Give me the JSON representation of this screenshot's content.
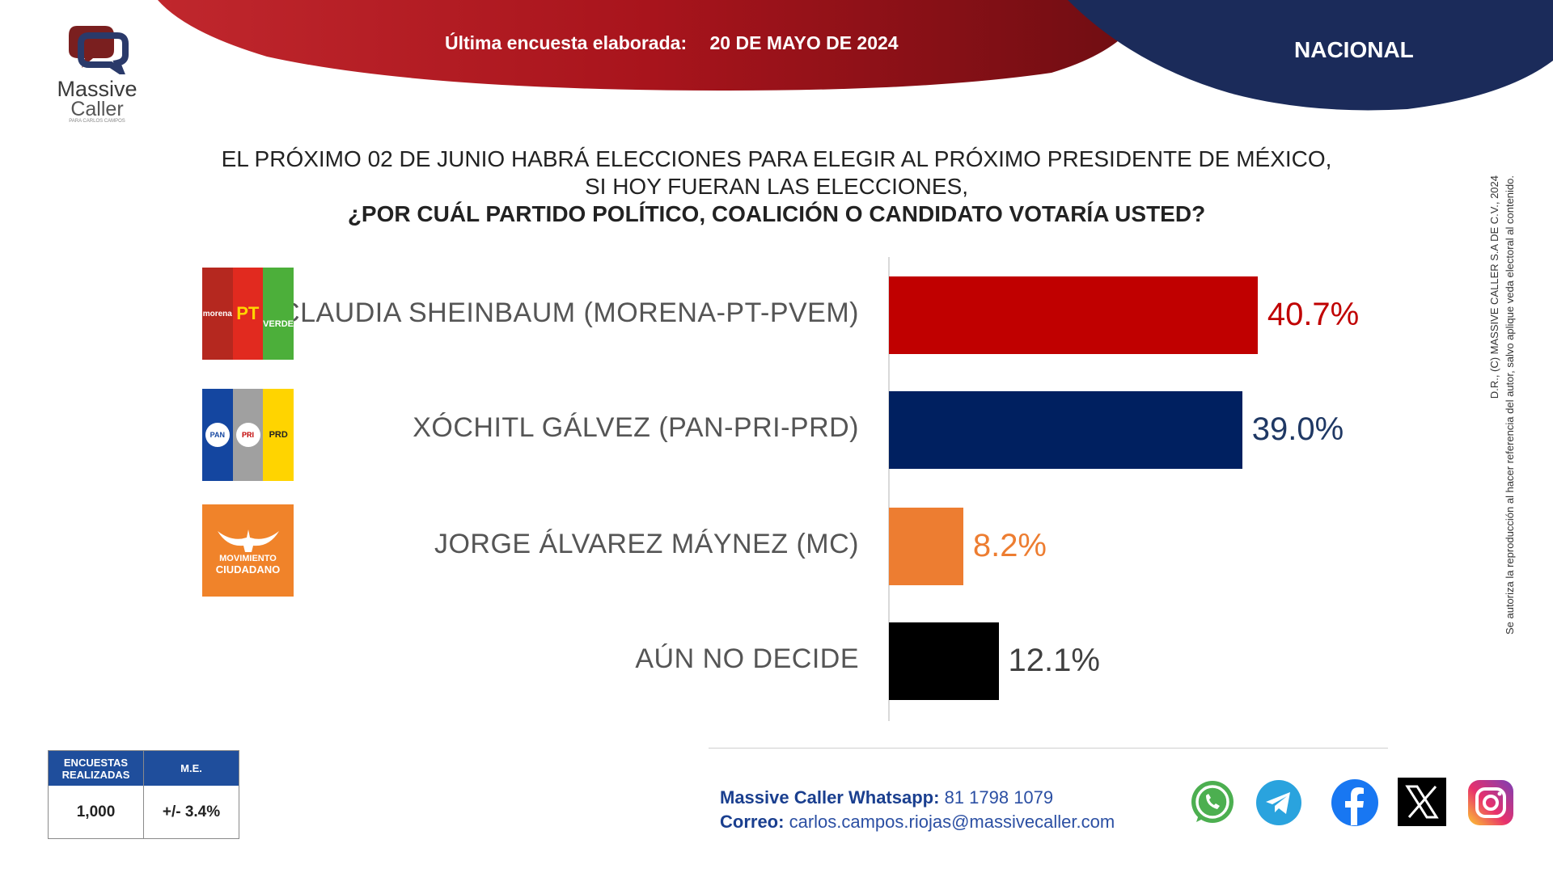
{
  "header": {
    "survey_label": "Última encuesta elaborada:",
    "survey_date": "20 DE MAYO DE 2024",
    "scope": "NACIONAL"
  },
  "logo": {
    "line1": "Massive",
    "line2": "Caller",
    "tagline": "PARA CARLOS CAMPOS"
  },
  "question": {
    "line1": "EL PRÓXIMO 02 DE JUNIO HABRÁ ELECCIONES PARA ELEGIR AL PRÓXIMO PRESIDENTE DE MÉXICO,",
    "line2": "SI HOY FUERAN LAS ELECCIONES,",
    "line3": "¿POR CUÁL PARTIDO POLÍTICO, COALICIÓN O CANDIDATO VOTARÍA USTED?"
  },
  "chart_data": {
    "type": "bar",
    "orientation": "horizontal",
    "categories": [
      "CLAUDIA SHEINBAUM (MORENA-PT-PVEM)",
      "XÓCHITL GÁLVEZ (PAN-PRI-PRD)",
      "JORGE ÁLVAREZ MÁYNEZ (MC)",
      "AÚN NO DECIDE"
    ],
    "values": [
      40.7,
      39.0,
      8.2,
      12.1
    ],
    "value_labels": [
      "40.7%",
      "39.0%",
      "8.2%",
      "12.1%"
    ],
    "colors": [
      "#c00000",
      "#002060",
      "#ed7d31",
      "#000000"
    ],
    "label_colors": [
      "#c00000",
      "#1f3864",
      "#ed7d31",
      "#404040"
    ],
    "xlim": [
      0,
      45
    ],
    "grid": false
  },
  "party_logos": {
    "morena": {
      "a": "morena",
      "b": "PT",
      "c": "VERDE",
      "colors": [
        "#b5281f",
        "#e12a1f",
        "#4caf3a"
      ]
    },
    "pan_pri_prd": {
      "a": "PAN",
      "b": "PRI",
      "c": "PRD",
      "colors": [
        "#1446a0",
        "#a0a0a0",
        "#ffd400"
      ]
    },
    "mc": {
      "a": "MOVIMIENTO",
      "b": "CIUDADANO",
      "colors": [
        "#f0832a"
      ]
    }
  },
  "copyright": {
    "line1": "D.R., (C) MASSIVE CALLER S.A DE C.V., 2024",
    "line2": "Se autoriza la reproducción al hacer referencia del autor, salvo aplique veda electoral al contenido."
  },
  "stats": {
    "col1_header": "ENCUESTAS REALIZADAS",
    "col2_header": "M.E.",
    "col1_value": "1,000",
    "col2_value": "+/- 3.4%"
  },
  "contact": {
    "whatsapp_label": "Massive Caller Whatsapp:",
    "whatsapp_value": "81 1798 1079",
    "email_label": "Correo:",
    "email_value": "carlos.campos.riojas@massivecaller.com"
  },
  "social": [
    "whatsapp-icon",
    "telegram-icon",
    "facebook-icon",
    "x-icon",
    "instagram-icon"
  ]
}
